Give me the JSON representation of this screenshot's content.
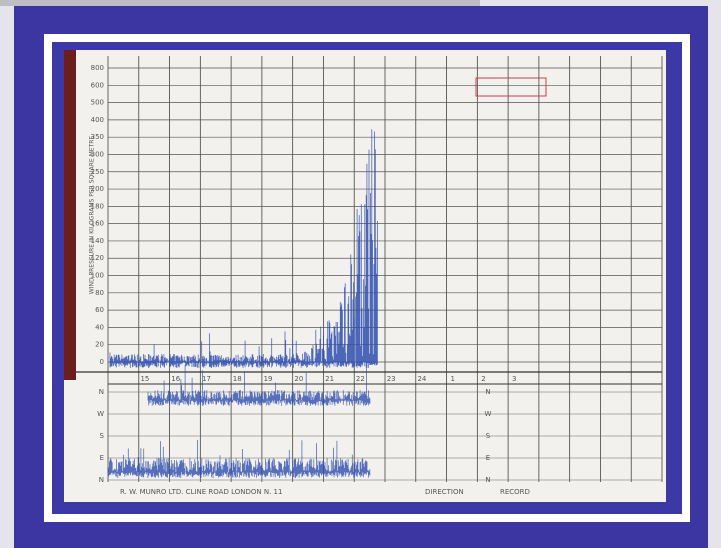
{
  "recorder": {
    "axis_title": "WIND PRESSURE IN KILOGRAMS PER SQUARE METRE",
    "pressure_scale": [
      800,
      600,
      500,
      400,
      350,
      300,
      250,
      200,
      180,
      160,
      140,
      120,
      100,
      80,
      60,
      40,
      20,
      0
    ],
    "hours": [
      15,
      16,
      17,
      18,
      19,
      20,
      21,
      22,
      23,
      24,
      1,
      2,
      3
    ],
    "direction_scale": [
      "N",
      "W",
      "S",
      "E",
      "N"
    ],
    "maker": "R. W. MUNRO LTD. CLINE ROAD LONDON N. 11",
    "direction_label": "DIRECTION",
    "record_label": "RECORD"
  }
}
